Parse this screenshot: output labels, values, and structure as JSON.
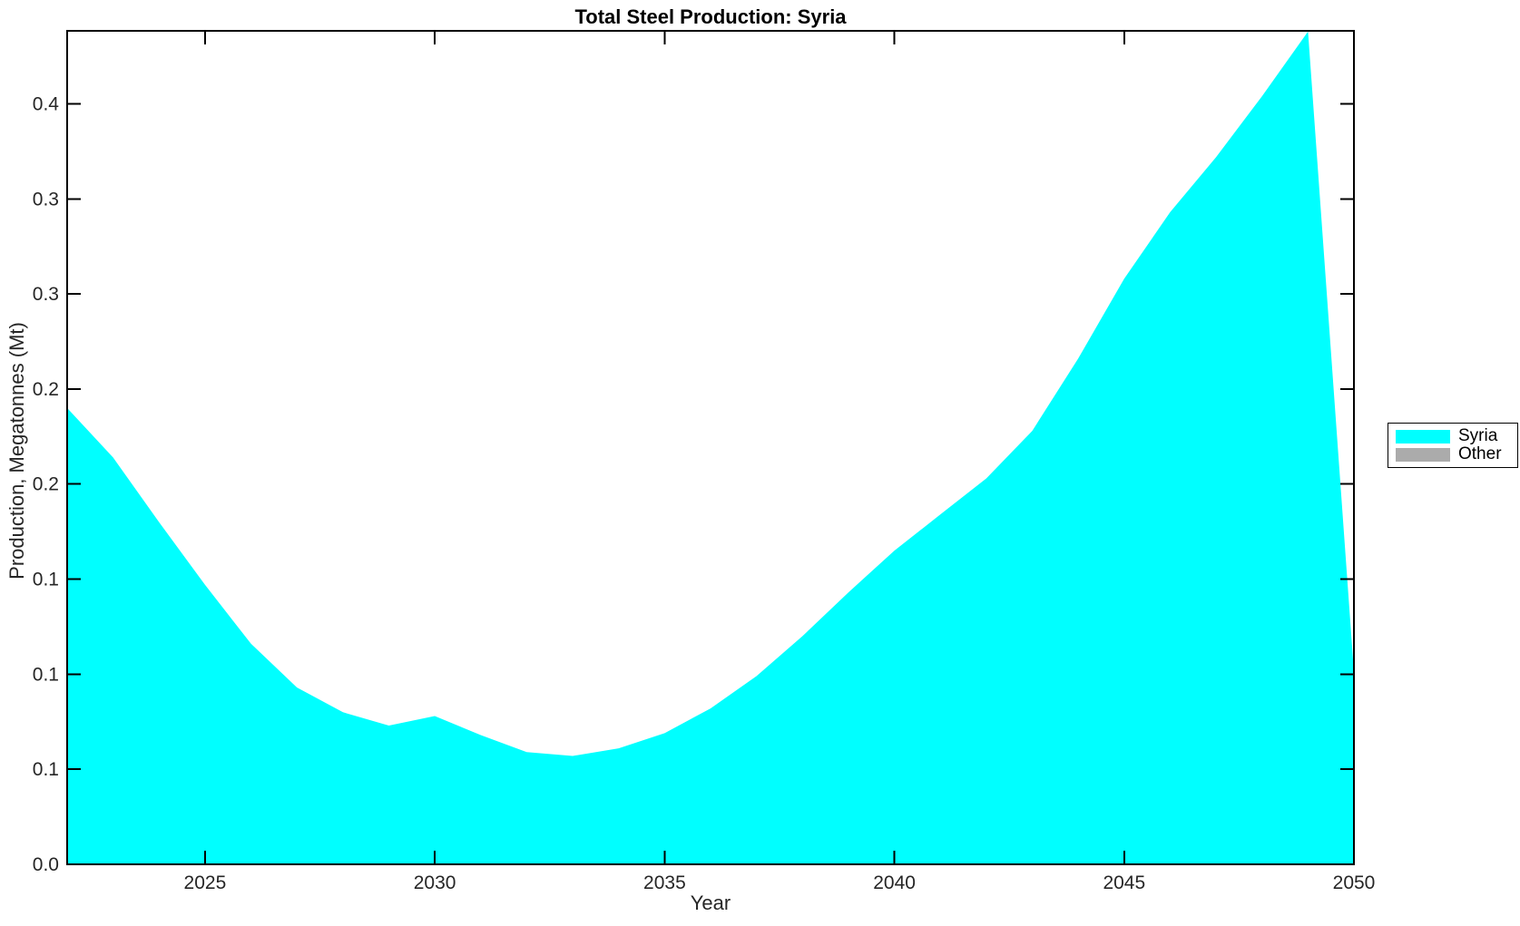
{
  "figure_title": "Total Steel Production: Syria",
  "chart_data": {
    "type": "area",
    "title": "Total Steel Production: Syria",
    "xlabel": "Year",
    "ylabel": "Production, Megatonnes (Mt)",
    "x": [
      2022,
      2023,
      2024,
      2025,
      2026,
      2027,
      2028,
      2029,
      2030,
      2031,
      2032,
      2033,
      2034,
      2035,
      2036,
      2037,
      2038,
      2039,
      2040,
      2041,
      2042,
      2043,
      2044,
      2045,
      2046,
      2047,
      2048,
      2049,
      2050
    ],
    "series": [
      {
        "name": "Syria",
        "color": "#00ffff",
        "values": [
          0.24,
          0.214,
          0.18,
          0.147,
          0.116,
          0.093,
          0.08,
          0.073,
          0.078,
          0.068,
          0.059,
          0.057,
          0.061,
          0.069,
          0.082,
          0.099,
          0.12,
          0.143,
          0.165,
          0.184,
          0.203,
          0.228,
          0.266,
          0.308,
          0.343,
          0.372,
          0.404,
          0.438,
          0.101
        ]
      },
      {
        "name": "Other",
        "color": "#ababab",
        "values": [
          0,
          0,
          0,
          0,
          0,
          0,
          0,
          0,
          0,
          0,
          0,
          0,
          0,
          0,
          0,
          0,
          0,
          0,
          0,
          0,
          0,
          0,
          0,
          0,
          0,
          0,
          0,
          0,
          0
        ]
      }
    ],
    "xlim": [
      2022,
      2050
    ],
    "ylim": [
      0,
      0.4384
    ],
    "x_ticks": [
      2025,
      2030,
      2035,
      2040,
      2045,
      2050
    ],
    "y_ticks": {
      "values": [
        0,
        0.05,
        0.1,
        0.15,
        0.2,
        0.25,
        0.3,
        0.35,
        0.4
      ],
      "labels": [
        "0.0",
        "0.1",
        "0.1",
        "0.1",
        "0.2",
        "0.2",
        "0.3",
        "0.3",
        "0.4"
      ]
    },
    "legend": {
      "position": "outside-right",
      "entries": [
        "Syria",
        "Other"
      ]
    },
    "grid": false,
    "axis_color": "#000000",
    "tick_label_color": "#262626"
  }
}
